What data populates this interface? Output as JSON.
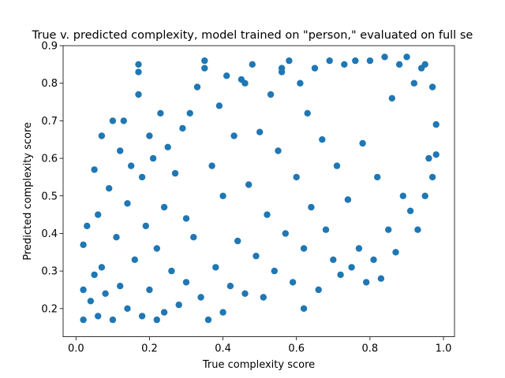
{
  "chart_data": {
    "type": "scatter",
    "title": "True v. predicted complexity, model trained on \"person,\" evaluated on full se",
    "xlabel": "True complexity score",
    "ylabel": "Predicted complexity score",
    "xlim": [
      -0.035,
      1.03
    ],
    "ylim": [
      0.125,
      0.9
    ],
    "xticks": [
      0.0,
      0.2,
      0.4,
      0.6,
      0.8,
      1.0
    ],
    "xtick_labels": [
      "0.0",
      "0.2",
      "0.4",
      "0.6",
      "0.8",
      "1.0"
    ],
    "yticks": [
      0.2,
      0.3,
      0.4,
      0.5,
      0.6,
      0.7,
      0.8,
      0.9
    ],
    "ytick_labels": [
      "0.2",
      "0.3",
      "0.4",
      "0.5",
      "0.6",
      "0.7",
      "0.8",
      "0.9"
    ],
    "grid": false,
    "marker_color": "#1f77b4",
    "series": [
      {
        "points": [
          [
            0.02,
            0.17
          ],
          [
            0.02,
            0.25
          ],
          [
            0.02,
            0.37
          ],
          [
            0.03,
            0.42
          ],
          [
            0.04,
            0.22
          ],
          [
            0.05,
            0.57
          ],
          [
            0.05,
            0.29
          ],
          [
            0.06,
            0.18
          ],
          [
            0.06,
            0.45
          ],
          [
            0.07,
            0.66
          ],
          [
            0.07,
            0.31
          ],
          [
            0.08,
            0.24
          ],
          [
            0.09,
            0.52
          ],
          [
            0.1,
            0.7
          ],
          [
            0.1,
            0.17
          ],
          [
            0.11,
            0.39
          ],
          [
            0.12,
            0.62
          ],
          [
            0.12,
            0.26
          ],
          [
            0.13,
            0.7
          ],
          [
            0.14,
            0.2
          ],
          [
            0.14,
            0.48
          ],
          [
            0.15,
            0.58
          ],
          [
            0.16,
            0.33
          ],
          [
            0.17,
            0.85
          ],
          [
            0.17,
            0.83
          ],
          [
            0.17,
            0.77
          ],
          [
            0.18,
            0.18
          ],
          [
            0.18,
            0.55
          ],
          [
            0.19,
            0.42
          ],
          [
            0.2,
            0.66
          ],
          [
            0.2,
            0.25
          ],
          [
            0.21,
            0.6
          ],
          [
            0.22,
            0.36
          ],
          [
            0.22,
            0.17
          ],
          [
            0.23,
            0.72
          ],
          [
            0.24,
            0.47
          ],
          [
            0.24,
            0.19
          ],
          [
            0.25,
            0.63
          ],
          [
            0.26,
            0.3
          ],
          [
            0.27,
            0.56
          ],
          [
            0.28,
            0.21
          ],
          [
            0.29,
            0.68
          ],
          [
            0.3,
            0.44
          ],
          [
            0.3,
            0.27
          ],
          [
            0.31,
            0.72
          ],
          [
            0.32,
            0.39
          ],
          [
            0.33,
            0.79
          ],
          [
            0.34,
            0.23
          ],
          [
            0.35,
            0.86
          ],
          [
            0.35,
            0.84
          ],
          [
            0.36,
            0.17
          ],
          [
            0.37,
            0.58
          ],
          [
            0.38,
            0.31
          ],
          [
            0.39,
            0.74
          ],
          [
            0.4,
            0.19
          ],
          [
            0.4,
            0.5
          ],
          [
            0.41,
            0.82
          ],
          [
            0.42,
            0.26
          ],
          [
            0.43,
            0.66
          ],
          [
            0.44,
            0.38
          ],
          [
            0.45,
            0.81
          ],
          [
            0.46,
            0.8
          ],
          [
            0.46,
            0.24
          ],
          [
            0.47,
            0.53
          ],
          [
            0.48,
            0.85
          ],
          [
            0.49,
            0.34
          ],
          [
            0.5,
            0.67
          ],
          [
            0.51,
            0.23
          ],
          [
            0.52,
            0.45
          ],
          [
            0.53,
            0.77
          ],
          [
            0.54,
            0.3
          ],
          [
            0.55,
            0.62
          ],
          [
            0.56,
            0.84
          ],
          [
            0.56,
            0.83
          ],
          [
            0.57,
            0.4
          ],
          [
            0.58,
            0.86
          ],
          [
            0.59,
            0.27
          ],
          [
            0.6,
            0.55
          ],
          [
            0.61,
            0.8
          ],
          [
            0.62,
            0.2
          ],
          [
            0.62,
            0.36
          ],
          [
            0.63,
            0.72
          ],
          [
            0.64,
            0.47
          ],
          [
            0.65,
            0.84
          ],
          [
            0.66,
            0.25
          ],
          [
            0.67,
            0.65
          ],
          [
            0.68,
            0.41
          ],
          [
            0.69,
            0.86
          ],
          [
            0.7,
            0.33
          ],
          [
            0.71,
            0.58
          ],
          [
            0.72,
            0.29
          ],
          [
            0.73,
            0.85
          ],
          [
            0.74,
            0.49
          ],
          [
            0.75,
            0.31
          ],
          [
            0.76,
            0.86
          ],
          [
            0.77,
            0.36
          ],
          [
            0.78,
            0.64
          ],
          [
            0.79,
            0.27
          ],
          [
            0.8,
            0.86
          ],
          [
            0.81,
            0.33
          ],
          [
            0.82,
            0.55
          ],
          [
            0.83,
            0.28
          ],
          [
            0.84,
            0.87
          ],
          [
            0.85,
            0.41
          ],
          [
            0.86,
            0.76
          ],
          [
            0.87,
            0.35
          ],
          [
            0.88,
            0.85
          ],
          [
            0.89,
            0.5
          ],
          [
            0.9,
            0.87
          ],
          [
            0.91,
            0.46
          ],
          [
            0.92,
            0.8
          ],
          [
            0.93,
            0.41
          ],
          [
            0.94,
            0.84
          ],
          [
            0.95,
            0.5
          ],
          [
            0.95,
            0.85
          ],
          [
            0.96,
            0.6
          ],
          [
            0.97,
            0.79
          ],
          [
            0.97,
            0.55
          ],
          [
            0.98,
            0.69
          ],
          [
            0.98,
            0.61
          ]
        ]
      }
    ]
  }
}
